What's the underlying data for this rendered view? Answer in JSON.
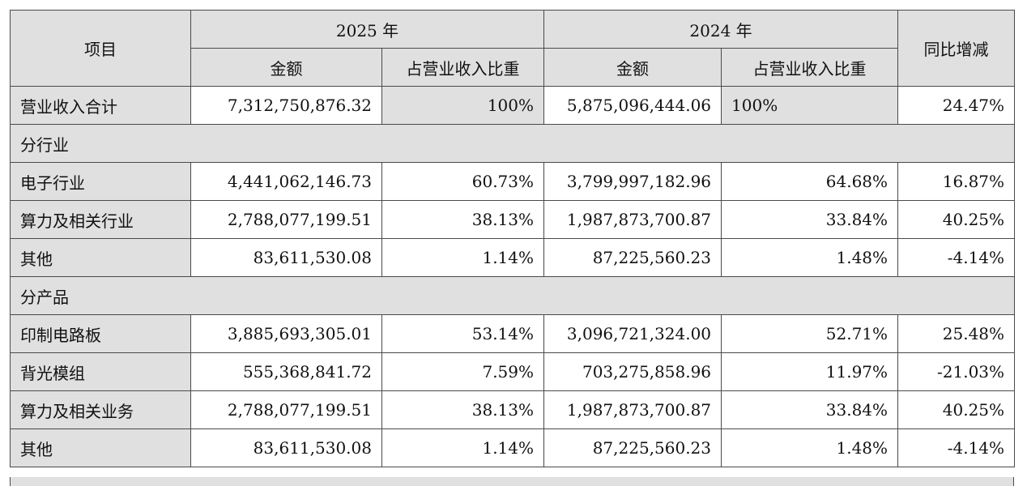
{
  "header": {
    "item": "项目",
    "year_2025": "2025 年",
    "year_2024": "2024 年",
    "amount": "金额",
    "ratio": "占营业收入比重",
    "yoy": "同比增减"
  },
  "total": {
    "label": "营业收入合计",
    "amt_2025": "7,312,750,876.32",
    "ratio_2025": "100%",
    "amt_2024": "5,875,096,444.06",
    "ratio_2024": "100%",
    "yoy": "24.47%"
  },
  "section_industry": "分行业",
  "industry_rows": [
    {
      "label": "电子行业",
      "amt_2025": "4,441,062,146.73",
      "ratio_2025": "60.73%",
      "amt_2024": "3,799,997,182.96",
      "ratio_2024": "64.68%",
      "yoy": "16.87%"
    },
    {
      "label": "算力及相关行业",
      "amt_2025": "2,788,077,199.51",
      "ratio_2025": "38.13%",
      "amt_2024": "1,987,873,700.87",
      "ratio_2024": "33.84%",
      "yoy": "40.25%"
    },
    {
      "label": "其他",
      "amt_2025": "83,611,530.08",
      "ratio_2025": "1.14%",
      "amt_2024": "87,225,560.23",
      "ratio_2024": "1.48%",
      "yoy": "-4.14%"
    }
  ],
  "section_product": "分产品",
  "product_rows": [
    {
      "label": "印制电路板",
      "amt_2025": "3,885,693,305.01",
      "ratio_2025": "53.14%",
      "amt_2024": "3,096,721,324.00",
      "ratio_2024": "52.71%",
      "yoy": "25.48%"
    },
    {
      "label": "背光模组",
      "amt_2025": "555,368,841.72",
      "ratio_2025": "7.59%",
      "amt_2024": "703,275,858.96",
      "ratio_2024": "11.97%",
      "yoy": "-21.03%"
    },
    {
      "label": "算力及相关业务",
      "amt_2025": "2,788,077,199.51",
      "ratio_2025": "38.13%",
      "amt_2024": "1,987,873,700.87",
      "ratio_2024": "33.84%",
      "yoy": "40.25%"
    },
    {
      "label": "其他",
      "amt_2025": "83,611,530.08",
      "ratio_2025": "1.14%",
      "amt_2024": "87,225,560.23",
      "ratio_2024": "1.48%",
      "yoy": "-4.14%"
    }
  ]
}
